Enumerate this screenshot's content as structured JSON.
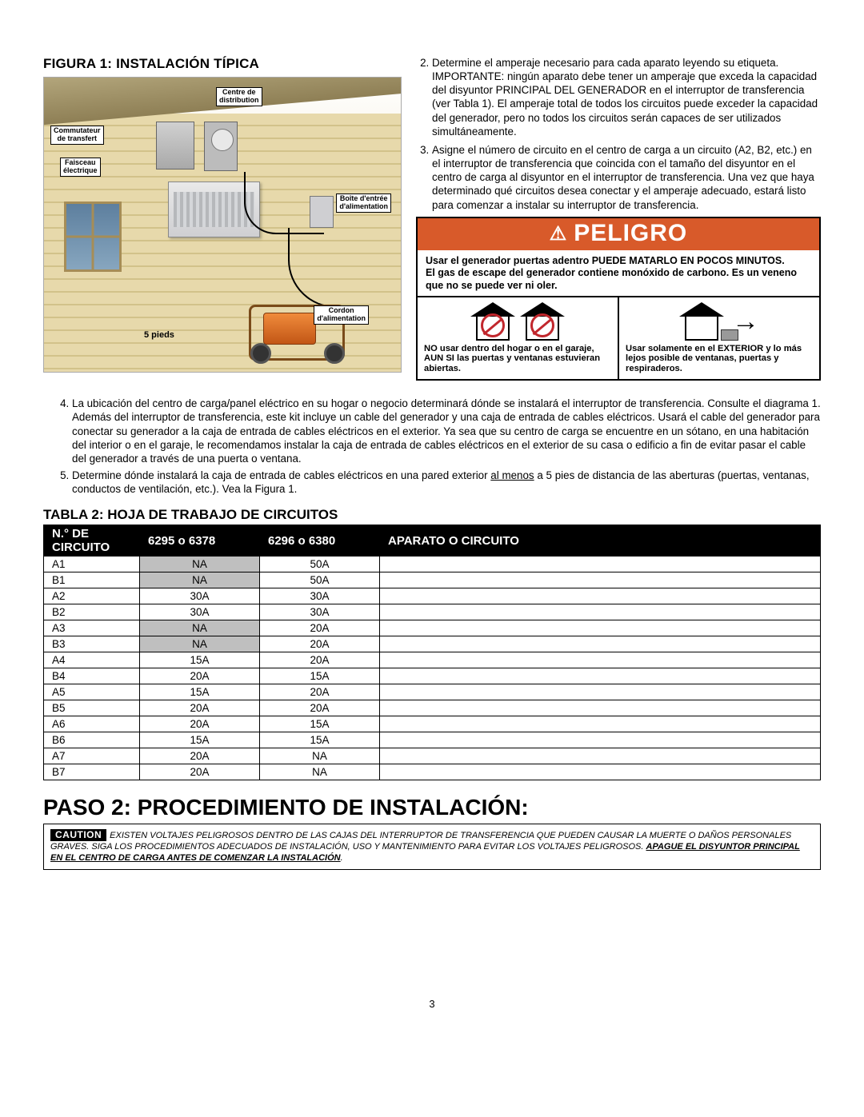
{
  "figureTitle": "FIGURA 1: INSTALACIÓN TÍPICA",
  "figure": {
    "labels": {
      "centre": "Centre de\ndistribution",
      "commutateur": "Commutateur\nde transfert",
      "faisceau": "Faisceau\nélectrique",
      "boite": "Boîte d'entrée\nd'alimentation",
      "cordon": "Cordon\nd'alimentation",
      "distance": "5 pieds"
    },
    "colors": {
      "roof": "#8e7f55",
      "wallLight": "#e7d9ab",
      "wallDark": "#d2c28a",
      "genOrange": "#f08b3b",
      "windowBlue": "#5d7f9e"
    }
  },
  "topList": {
    "start": 2,
    "items": [
      "Determine el amperaje necesario para cada aparato leyendo su etiqueta. IMPORTANTE: ningún aparato debe tener un amperaje que exceda la capacidad del disyuntor PRINCIPAL DEL GENERADOR en el interruptor de transferencia (ver Tabla 1). El amperaje total de todos los circuitos puede exceder la capacidad del generador, pero no todos los circuitos serán capaces de ser utilizados simultáneamente.",
      "Asigne el número de circuito en el centro de carga a un circuito (A2, B2, etc.) en el interruptor de transferencia que coincida con el tamaño del disyuntor en el centro de carga al disyuntor en el interruptor de transferencia. Una vez que haya determinado qué circuitos desea conectar y el amperaje adecuado, estará listo para comenzar a instalar su interruptor de transferencia."
    ]
  },
  "peligro": {
    "heading": "PELIGRO",
    "warn1": "Usar el generador puertas adentro PUEDE MATARLO EN POCOS MINUTOS.",
    "warn2": "El gas de escape del generador contiene monóxido de carbono. Es un veneno que no se puede ver ni oler.",
    "left": "NO usar dentro del hogar o en el garaje, AUN SI las puertas y ventanas estuvieran abiertas.",
    "right": "Usar solamente en el EXTERIOR y lo más lejos posible de ventanas, puertas y respiraderos.",
    "colors": {
      "headerBg": "#d85a2a",
      "prohibit": "#c1272d"
    }
  },
  "belowList": {
    "start": 4,
    "items": [
      {
        "pre": "La ubicación del centro de carga/panel eléctrico en su hogar o negocio determinará dónde se instalará el interruptor de transferencia. Consulte el diagrama 1. Además del interruptor de transferencia, este kit incluye un cable del generador y una caja de entrada de cables eléctricos. Usará el cable del generador para conectar su generador a la caja de entrada de cables eléctricos en el exterior. Ya sea que su centro de carga se encuentre en un sótano, en una habitación del interior o en el garaje, le recomendamos instalar la caja de entrada de cables eléctricos en el exterior de su casa o edificio a fin de evitar pasar el cable del generador a través de una puerta o ventana."
      },
      {
        "pre": "Determine dónde instalará la caja de entrada de cables eléctricos en una pared exterior ",
        "under": "al menos",
        "post": " a 5 pies de distancia de las aberturas (puertas, ventanas, conductos de ventilación, etc.). Vea la Figura 1."
      }
    ]
  },
  "tableTitle": "TABLA 2: HOJA DE TRABAJO DE CIRCUITOS",
  "table": {
    "headers": [
      "N.° DE CIRCUITO",
      "6295 o 6378",
      "6296 o 6380",
      "APARATO O CIRCUITO"
    ],
    "rows": [
      {
        "id": "A1",
        "a": "NA",
        "b": "50A",
        "na": true
      },
      {
        "id": "B1",
        "a": "NA",
        "b": "50A",
        "na": true
      },
      {
        "id": "A2",
        "a": "30A",
        "b": "30A",
        "na": false
      },
      {
        "id": "B2",
        "a": "30A",
        "b": "30A",
        "na": false
      },
      {
        "id": "A3",
        "a": "NA",
        "b": "20A",
        "na": true
      },
      {
        "id": "B3",
        "a": "NA",
        "b": "20A",
        "na": true
      },
      {
        "id": "A4",
        "a": "15A",
        "b": "20A",
        "na": false
      },
      {
        "id": "B4",
        "a": "20A",
        "b": "15A",
        "na": false
      },
      {
        "id": "A5",
        "a": "15A",
        "b": "20A",
        "na": false
      },
      {
        "id": "B5",
        "a": "20A",
        "b": "20A",
        "na": false
      },
      {
        "id": "A6",
        "a": "20A",
        "b": "15A",
        "na": false
      },
      {
        "id": "B6",
        "a": "15A",
        "b": "15A",
        "na": false
      },
      {
        "id": "A7",
        "a": "20A",
        "b": "NA",
        "na": false
      },
      {
        "id": "B7",
        "a": "20A",
        "b": "NA",
        "na": false
      }
    ],
    "naColor": "#bfbfbf"
  },
  "pasoTitle": "PASO 2: PROCEDIMIENTO DE INSTALACIÓN:",
  "caution": {
    "tag": "CAUTION",
    "body": "EXISTEN VOLTAJES PELIGROSOS DENTRO DE LAS CAJAS DEL INTERRUPTOR DE TRANSFERENCIA QUE PUEDEN CAUSAR LA MUERTE O DAÑOS PERSONALES GRAVES. SIGA LOS PROCEDIMIENTOS ADECUADOS DE INSTALACIÓN, USO Y MANTENIMIENTO PARA EVITAR LOS VOLTAJES PELIGROSOS. ",
    "under": "APAGUE EL DISYUNTOR PRINCIPAL EN EL CENTRO DE CARGA ANTES DE COMENZAR LA INSTALACIÓN",
    "tail": "."
  },
  "pageNumber": "3"
}
